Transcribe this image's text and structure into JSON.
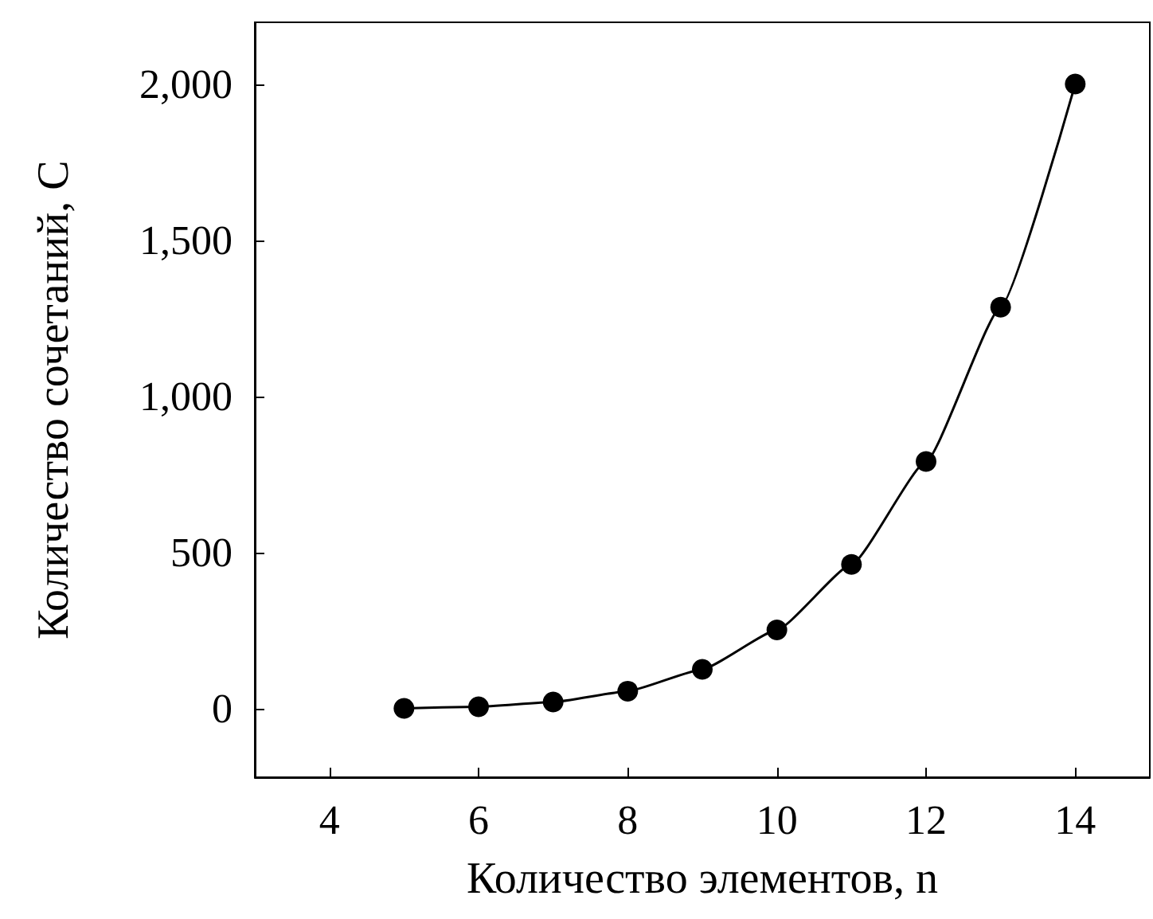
{
  "chart_data": {
    "type": "line",
    "xlabel": "Количество элементов, n",
    "ylabel": "Количество сочетаний, C",
    "x": [
      5,
      6,
      7,
      8,
      9,
      10,
      11,
      12,
      13,
      14
    ],
    "series": [
      {
        "color": "#000000",
        "values": [
          1,
          6,
          21,
          56,
          126,
          252,
          462,
          792,
          1287,
          2002
        ]
      }
    ],
    "xlim": [
      3,
      15
    ],
    "xticks": [
      4,
      6,
      8,
      10,
      12,
      14
    ],
    "ylim": [
      -220,
      2200
    ],
    "yticks": [
      0,
      500,
      {
        "value": 1000,
        "label": "1,000"
      },
      {
        "value": 1500,
        "label": "1,500"
      },
      {
        "value": 2000,
        "label": "2,000"
      }
    ],
    "grid": false,
    "marker": "circle",
    "line_style": "solid"
  }
}
